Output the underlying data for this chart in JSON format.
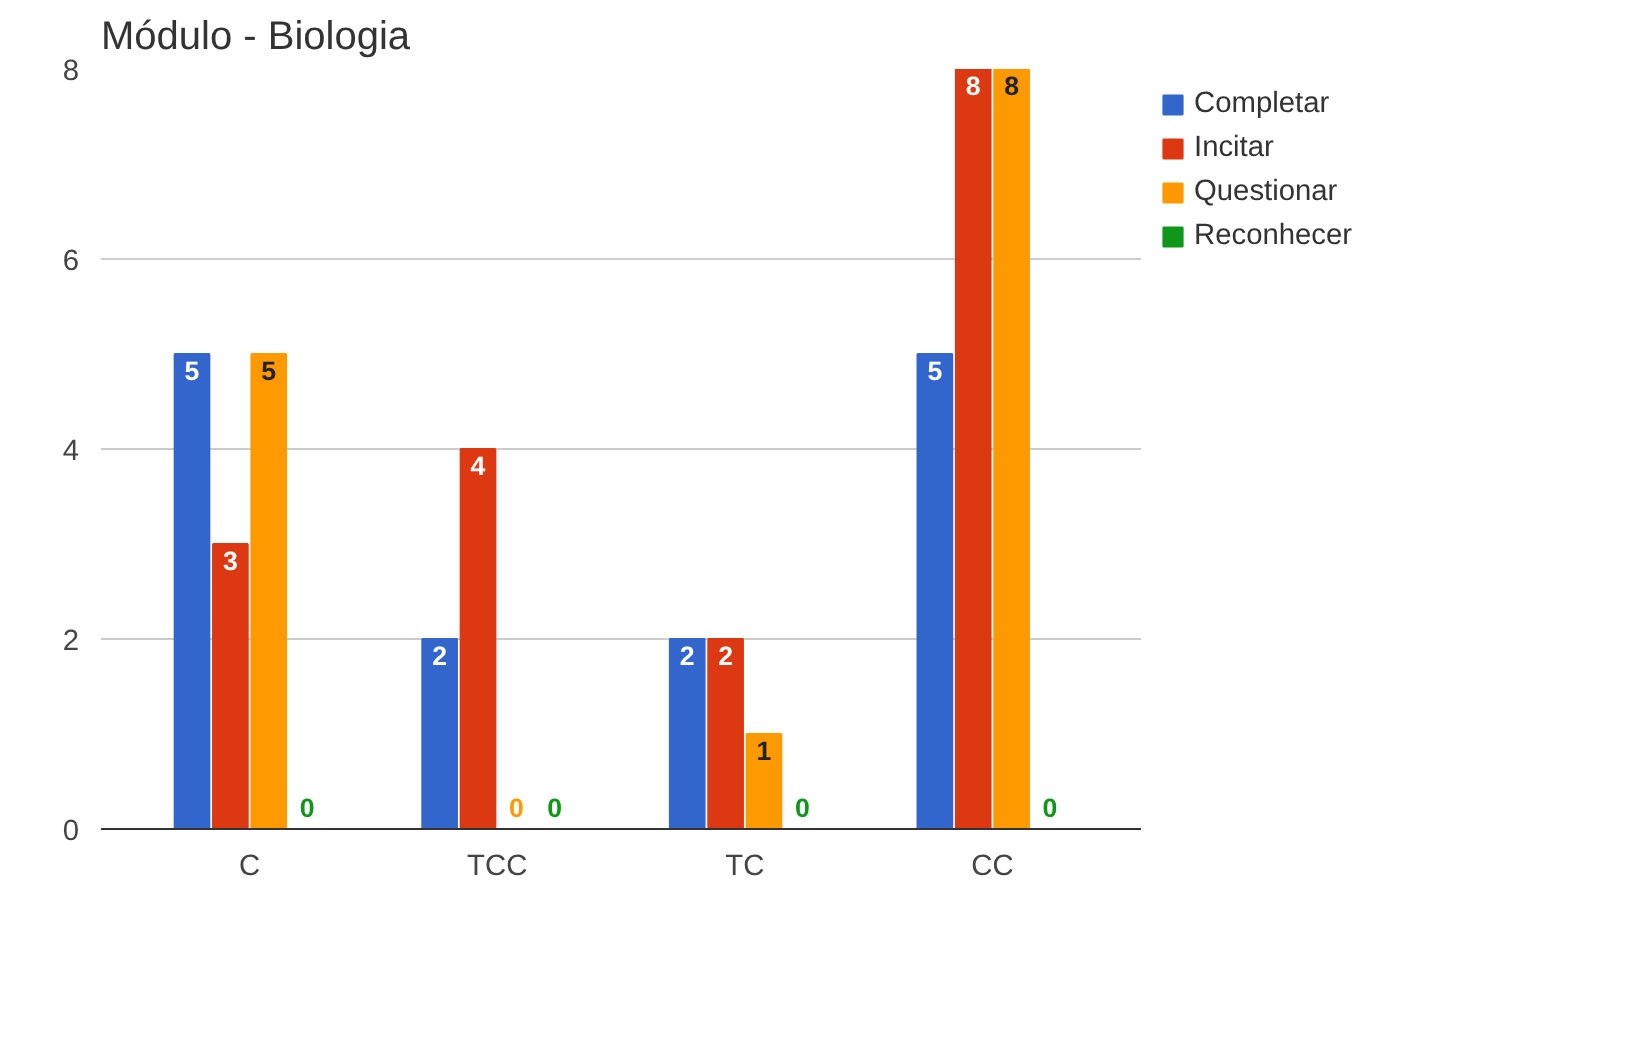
{
  "chart_data": {
    "type": "bar",
    "title": "Módulo - Biologia",
    "categories": [
      "C",
      "TCC",
      "TC",
      "CC"
    ],
    "series": [
      {
        "name": "Completar",
        "color": "#3366cc",
        "values": [
          5,
          2,
          2,
          5
        ]
      },
      {
        "name": "Incitar",
        "color": "#dc3912",
        "values": [
          3,
          4,
          2,
          8
        ]
      },
      {
        "name": "Questionar",
        "color": "#ff9900",
        "values": [
          5,
          0,
          1,
          8
        ]
      },
      {
        "name": "Reconhecer",
        "color": "#109618",
        "values": [
          0,
          0,
          0,
          0
        ]
      }
    ],
    "ylim": [
      0,
      8
    ],
    "yticks": [
      0,
      2,
      4,
      6,
      8
    ],
    "grid": "y",
    "legend": "top right",
    "data_labels": true
  }
}
